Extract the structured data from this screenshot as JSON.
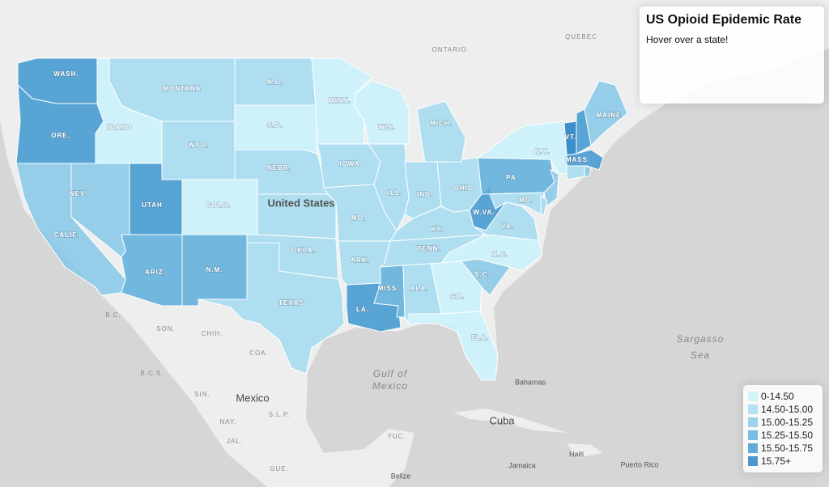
{
  "info": {
    "title": "US Opioid Epidemic Rate",
    "subtitle": "Hover over a state!"
  },
  "legend": [
    {
      "label": "0-14.50",
      "color": "#c9f1fb"
    },
    {
      "label": "14.50-15.00",
      "color": "#a2dbf0"
    },
    {
      "label": "15.00-15.25",
      "color": "#86c8e8"
    },
    {
      "label": "15.25-15.50",
      "color": "#5aaddb"
    },
    {
      "label": "15.50-15.75",
      "color": "#3d96d0"
    },
    {
      "label": "15.75+",
      "color": "#1f7fc3"
    }
  ],
  "states": [
    {
      "label": "WASH.",
      "color": "#3d96d0"
    },
    {
      "label": "ORE.",
      "color": "#3d96d0"
    },
    {
      "label": "CALIF.",
      "color": "#86c8e8"
    },
    {
      "label": "NEV.",
      "color": "#86c8e8"
    },
    {
      "label": "IDAHO",
      "color": "#c9f1fb"
    },
    {
      "label": "MONTANA",
      "color": "#a2dbf0"
    },
    {
      "label": "WYO.",
      "color": "#a2dbf0"
    },
    {
      "label": "UTAH",
      "color": "#3d96d0"
    },
    {
      "label": "COLO.",
      "color": "#c9f1fb"
    },
    {
      "label": "ARIZ.",
      "color": "#5aaddb"
    },
    {
      "label": "N.M.",
      "color": "#5aaddb"
    },
    {
      "label": "N.D.",
      "color": "#a2dbf0"
    },
    {
      "label": "S.D.",
      "color": "#c9f1fb"
    },
    {
      "label": "NEBR.",
      "color": "#a2dbf0"
    },
    {
      "label": null,
      "color": "#a2dbf0"
    },
    {
      "label": "OKLA.",
      "color": "#a2dbf0"
    },
    {
      "label": "TEXAS",
      "color": "#a2dbf0"
    },
    {
      "label": "MINN.",
      "color": "#c9f1fb"
    },
    {
      "label": "IOWA",
      "color": "#a2dbf0"
    },
    {
      "label": "MO.",
      "color": "#a2dbf0"
    },
    {
      "label": "ARK.",
      "color": "#a2dbf0"
    },
    {
      "label": "LA.",
      "color": "#3d96d0"
    },
    {
      "label": "MISS.",
      "color": "#5aaddb"
    },
    {
      "label": "ALA.",
      "color": "#a2dbf0"
    },
    {
      "label": "GA.",
      "color": "#c9f1fb"
    },
    {
      "label": "FLA.",
      "color": "#c9f1fb"
    },
    {
      "label": "S.C.",
      "color": "#86c8e8"
    },
    {
      "label": "N.C.",
      "color": "#c9f1fb"
    },
    {
      "label": "TENN.",
      "color": "#a2dbf0"
    },
    {
      "label": "KY.",
      "color": "#a2dbf0"
    },
    {
      "label": "ILL.",
      "color": "#a2dbf0"
    },
    {
      "label": "IND.",
      "color": "#a2dbf0"
    },
    {
      "label": "OHIO",
      "color": "#a2dbf0"
    },
    {
      "label": "WIS.",
      "color": "#c9f1fb"
    },
    {
      "label": "MICH.",
      "color": "#a2dbf0"
    },
    {
      "label": "W.VA.",
      "color": "#3d96d0"
    },
    {
      "label": "VA.",
      "color": "#a2dbf0"
    },
    {
      "label": "PA.",
      "color": "#5aaddb"
    },
    {
      "label": "N.Y.",
      "color": "#c9f1fb"
    },
    {
      "label": "MD.",
      "color": "#a2dbf0"
    },
    {
      "label": null,
      "color": "#86c8e8"
    },
    {
      "label": null,
      "color": "#a2dbf0"
    },
    {
      "label": "VT.",
      "color": "#1f7fc3"
    },
    {
      "label": null,
      "color": "#3d96d0"
    },
    {
      "label": "MAINE",
      "color": "#86c8e8"
    },
    {
      "label": "MASS.",
      "color": "#3d96d0"
    },
    {
      "label": null,
      "color": "#a2dbf0"
    },
    {
      "label": null,
      "color": "#86c8e8"
    }
  ],
  "places": [
    "ONTARIO",
    "QUEBEC",
    "United States",
    "Mexico",
    "Cuba",
    "Gulf of",
    "Mexico",
    "Sargasso",
    "Sea",
    "Bahamas",
    "Haiti",
    "Jamaica",
    "Puerto Rico",
    "Belize",
    "B.C.",
    "SON.",
    "CHIH.",
    "COA.",
    "SIN.",
    "S.L.P.",
    "NAY.",
    "JAL.",
    "GUE.",
    "YUC.",
    "B.C.S."
  ]
}
